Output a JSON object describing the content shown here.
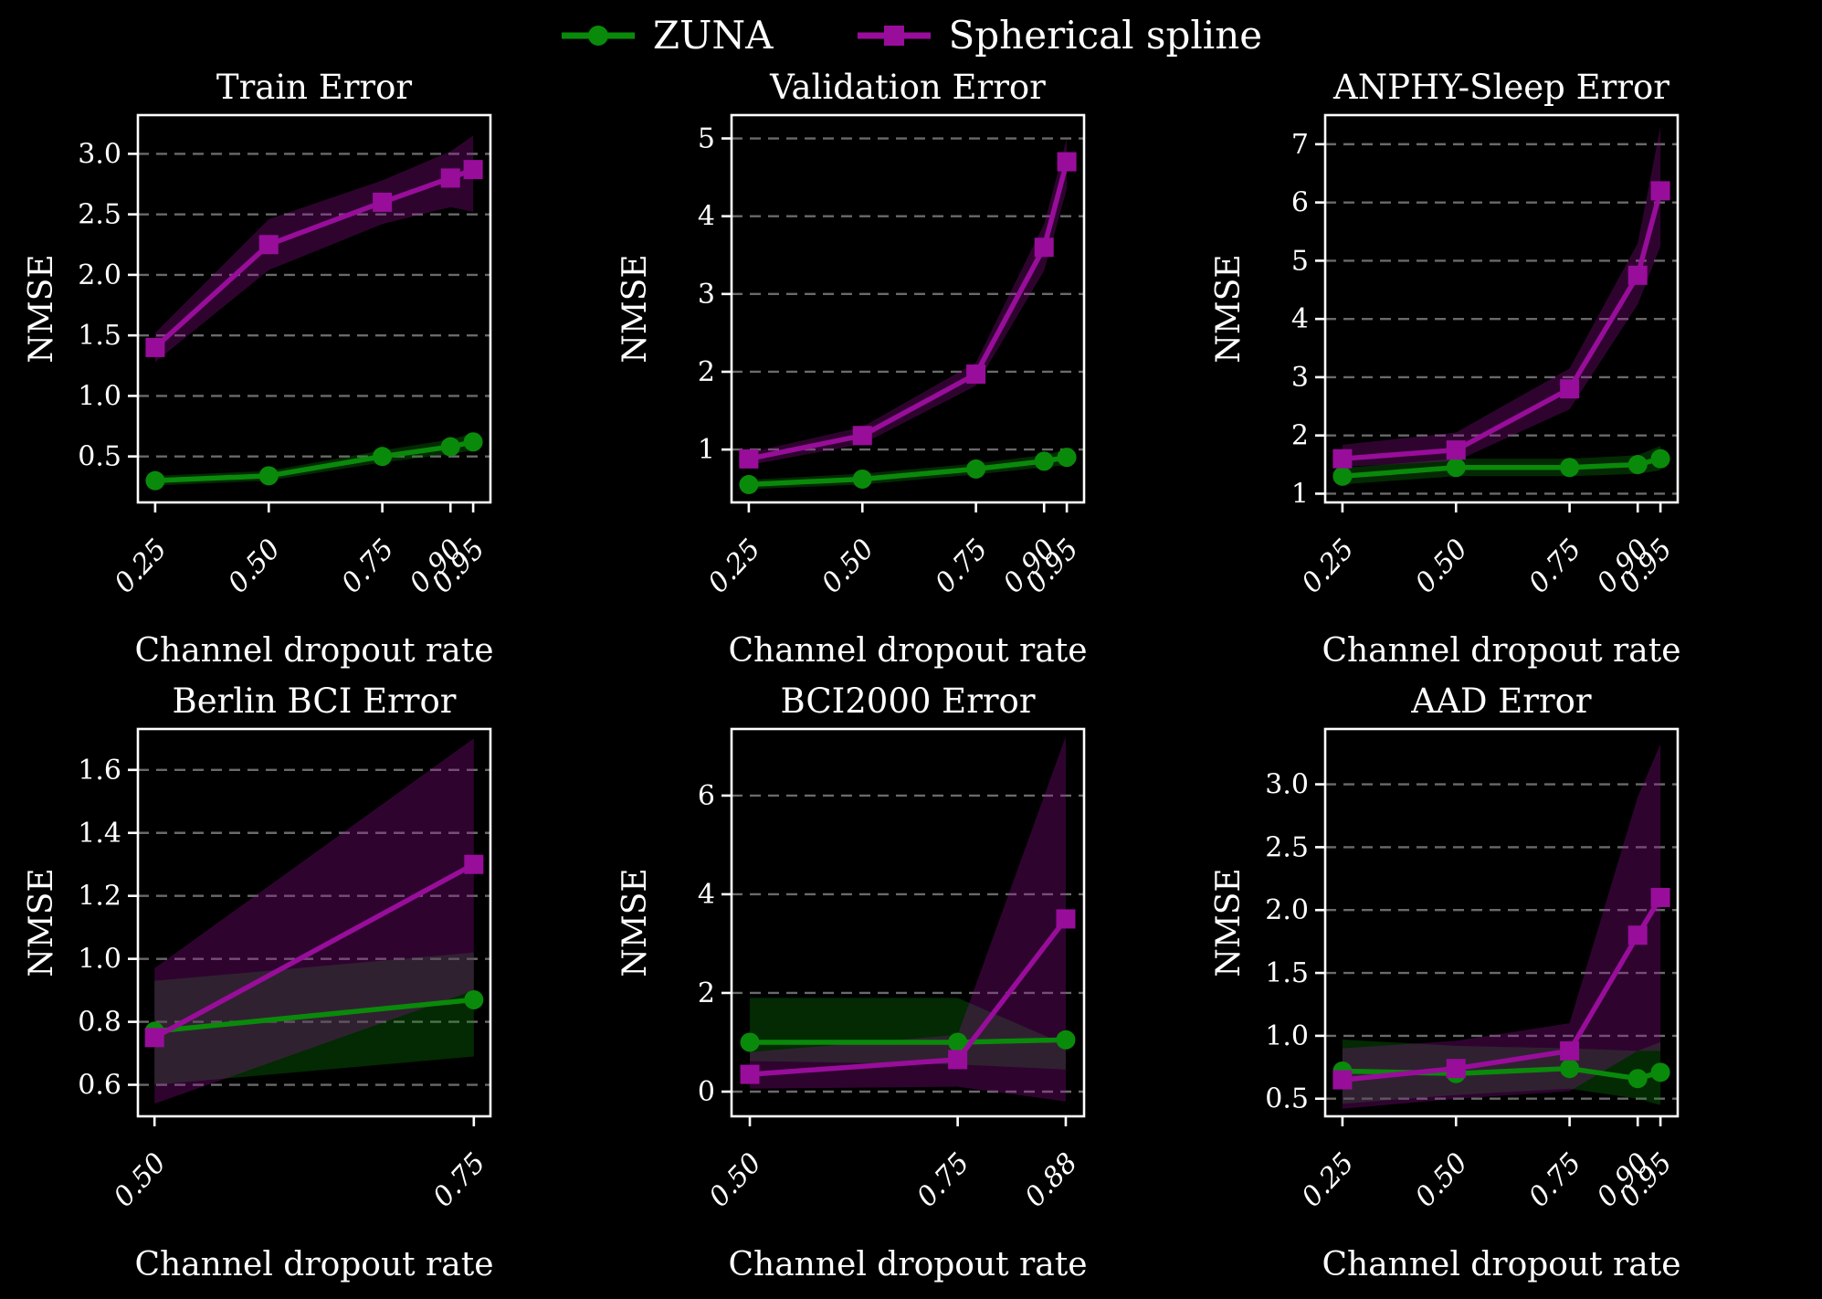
{
  "page": {
    "background": "#000000",
    "text_color": "#ffffff",
    "grid_color": "#6a6a6a"
  },
  "legend": {
    "items": [
      {
        "label": "ZUNA",
        "marker": "circle",
        "color": "#0a8a0a"
      },
      {
        "label": "Spherical spline",
        "marker": "square",
        "color": "#990d9b"
      }
    ]
  },
  "chart_data": [
    {
      "type": "line",
      "title": "Train Error",
      "xlabel": "Channel dropout rate",
      "ylabel": "NMSE",
      "grid": true,
      "legend_position": "figure-top",
      "x": [
        0.25,
        0.5,
        0.75,
        0.9,
        0.95
      ],
      "x_tick_labels": [
        "0.25",
        "0.50",
        "0.75",
        "0.90",
        "0.95"
      ],
      "xlim": [
        0.212,
        0.988
      ],
      "y_ticks": [
        0.5,
        1.0,
        1.5,
        2.0,
        2.5,
        3.0
      ],
      "y_tick_labels": [
        "0.5",
        "1.0",
        "1.5",
        "2.0",
        "2.5",
        "3.0"
      ],
      "ylim": [
        0.12,
        3.32
      ],
      "series": [
        {
          "name": "ZUNA",
          "color": "#0a8a0a",
          "marker": "circle",
          "values": [
            0.3,
            0.34,
            0.5,
            0.58,
            0.62
          ],
          "band_lo": [
            0.26,
            0.3,
            0.45,
            0.52,
            0.55
          ],
          "band_hi": [
            0.34,
            0.38,
            0.55,
            0.64,
            0.69
          ]
        },
        {
          "name": "Spherical spline",
          "color": "#990d9b",
          "marker": "square",
          "values": [
            1.4,
            2.25,
            2.6,
            2.8,
            2.87
          ],
          "band_lo": [
            1.28,
            2.04,
            2.42,
            2.56,
            2.52
          ],
          "band_hi": [
            1.52,
            2.46,
            2.78,
            3.02,
            3.15
          ]
        }
      ]
    },
    {
      "type": "line",
      "title": "Validation Error",
      "xlabel": "Channel dropout rate",
      "ylabel": "NMSE",
      "grid": true,
      "x": [
        0.25,
        0.5,
        0.75,
        0.9,
        0.95
      ],
      "x_tick_labels": [
        "0.25",
        "0.50",
        "0.75",
        "0.90",
        "0.95"
      ],
      "xlim": [
        0.212,
        0.988
      ],
      "y_ticks": [
        1,
        2,
        3,
        4,
        5
      ],
      "y_tick_labels": [
        "1",
        "2",
        "3",
        "4",
        "5"
      ],
      "ylim": [
        0.32,
        5.3
      ],
      "series": [
        {
          "name": "ZUNA",
          "color": "#0a8a0a",
          "marker": "circle",
          "values": [
            0.55,
            0.62,
            0.75,
            0.85,
            0.9
          ],
          "band_lo": [
            0.49,
            0.55,
            0.68,
            0.77,
            0.8
          ],
          "band_hi": [
            0.61,
            0.69,
            0.82,
            0.93,
            1.0
          ]
        },
        {
          "name": "Spherical spline",
          "color": "#990d9b",
          "marker": "square",
          "values": [
            0.88,
            1.18,
            1.97,
            3.6,
            4.7
          ],
          "band_lo": [
            0.8,
            1.07,
            1.82,
            3.3,
            4.35
          ],
          "band_hi": [
            0.96,
            1.29,
            2.12,
            3.9,
            5.0
          ]
        }
      ]
    },
    {
      "type": "line",
      "title": "ANPHY-Sleep Error",
      "xlabel": "Channel dropout rate",
      "ylabel": "NMSE",
      "grid": true,
      "x": [
        0.25,
        0.5,
        0.75,
        0.9,
        0.95
      ],
      "x_tick_labels": [
        "0.25",
        "0.50",
        "0.75",
        "0.90",
        "0.95"
      ],
      "xlim": [
        0.212,
        0.988
      ],
      "y_ticks": [
        1,
        2,
        3,
        4,
        5,
        6,
        7
      ],
      "y_tick_labels": [
        "1",
        "2",
        "3",
        "4",
        "5",
        "6",
        "7"
      ],
      "ylim": [
        0.85,
        7.5
      ],
      "series": [
        {
          "name": "ZUNA",
          "color": "#0a8a0a",
          "marker": "circle",
          "values": [
            1.3,
            1.45,
            1.45,
            1.5,
            1.6
          ],
          "band_lo": [
            1.16,
            1.3,
            1.3,
            1.34,
            1.4
          ],
          "band_hi": [
            1.44,
            1.6,
            1.6,
            1.66,
            1.82
          ]
        },
        {
          "name": "Spherical spline",
          "color": "#990d9b",
          "marker": "square",
          "values": [
            1.6,
            1.75,
            2.8,
            4.75,
            6.2
          ],
          "band_lo": [
            1.46,
            1.56,
            2.45,
            4.25,
            5.25
          ],
          "band_hi": [
            1.84,
            2.05,
            3.15,
            5.3,
            7.3
          ]
        }
      ]
    },
    {
      "type": "line",
      "title": "Berlin BCI Error",
      "xlabel": "Channel dropout rate",
      "ylabel": "NMSE",
      "grid": true,
      "x": [
        0.5,
        0.75
      ],
      "x_tick_labels": [
        "0.50",
        "0.75"
      ],
      "xlim": [
        0.487,
        0.763
      ],
      "y_ticks": [
        0.6,
        0.8,
        1.0,
        1.2,
        1.4,
        1.6
      ],
      "y_tick_labels": [
        "0.6",
        "0.8",
        "1.0",
        "1.2",
        "1.4",
        "1.6"
      ],
      "ylim": [
        0.5,
        1.73
      ],
      "series": [
        {
          "name": "ZUNA",
          "color": "#0a8a0a",
          "marker": "circle",
          "values": [
            0.77,
            0.87
          ],
          "band_lo": [
            0.6,
            0.69
          ],
          "band_hi": [
            0.93,
            1.02
          ]
        },
        {
          "name": "Spherical spline",
          "color": "#990d9b",
          "marker": "square",
          "values": [
            0.75,
            1.3
          ],
          "band_lo": [
            0.54,
            0.9
          ],
          "band_hi": [
            0.97,
            1.7
          ]
        }
      ]
    },
    {
      "type": "line",
      "title": "BCI2000 Error",
      "xlabel": "Channel dropout rate",
      "ylabel": "NMSE",
      "grid": true,
      "x": [
        0.5,
        0.75,
        0.88
      ],
      "x_tick_labels": [
        "0.50",
        "0.75",
        "0.88"
      ],
      "xlim": [
        0.478,
        0.902
      ],
      "y_ticks": [
        0,
        2,
        4,
        6
      ],
      "y_tick_labels": [
        "0",
        "2",
        "4",
        "6"
      ],
      "ylim": [
        -0.5,
        7.35
      ],
      "series": [
        {
          "name": "ZUNA",
          "color": "#0a8a0a",
          "marker": "circle",
          "values": [
            1.0,
            1.0,
            1.05
          ],
          "band_lo": [
            0.62,
            0.55,
            0.45
          ],
          "band_hi": [
            1.9,
            1.9,
            0.95
          ]
        },
        {
          "name": "Spherical spline",
          "color": "#990d9b",
          "marker": "square",
          "values": [
            0.35,
            0.65,
            3.5
          ],
          "band_lo": [
            0.06,
            0.1,
            -0.2
          ],
          "band_hi": [
            0.8,
            1.15,
            7.2
          ]
        }
      ]
    },
    {
      "type": "line",
      "title": "AAD Error",
      "xlabel": "Channel dropout rate",
      "ylabel": "NMSE",
      "grid": true,
      "x": [
        0.25,
        0.5,
        0.75,
        0.9,
        0.95
      ],
      "x_tick_labels": [
        "0.25",
        "0.50",
        "0.75",
        "0.90",
        "0.95"
      ],
      "xlim": [
        0.212,
        0.988
      ],
      "y_ticks": [
        0.5,
        1.0,
        1.5,
        2.0,
        2.5,
        3.0
      ],
      "y_tick_labels": [
        "0.5",
        "1.0",
        "1.5",
        "2.0",
        "2.5",
        "3.0"
      ],
      "ylim": [
        0.36,
        3.44
      ],
      "series": [
        {
          "name": "ZUNA",
          "color": "#0a8a0a",
          "marker": "circle",
          "values": [
            0.72,
            0.7,
            0.74,
            0.66,
            0.71
          ],
          "band_lo": [
            0.46,
            0.53,
            0.58,
            0.5,
            0.45
          ],
          "band_hi": [
            0.97,
            0.92,
            0.9,
            0.88,
            0.95
          ]
        },
        {
          "name": "Spherical spline",
          "color": "#990d9b",
          "marker": "square",
          "values": [
            0.65,
            0.74,
            0.88,
            1.8,
            2.1
          ],
          "band_lo": [
            0.42,
            0.5,
            0.56,
            0.88,
            0.88
          ],
          "band_hi": [
            0.9,
            0.96,
            1.1,
            2.9,
            3.32
          ]
        }
      ]
    }
  ]
}
